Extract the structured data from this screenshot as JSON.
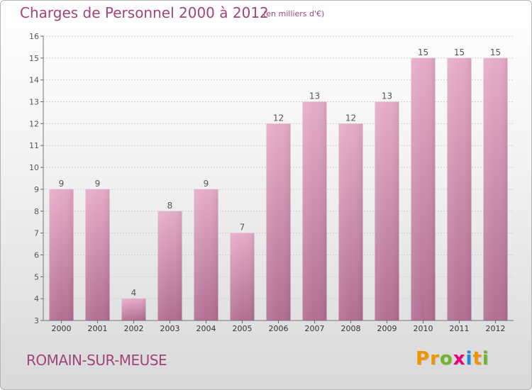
{
  "title": "Charges de Personnel 2000 à 2012",
  "subtitle": "(en milliers d'€)",
  "city": "ROMAIN-SUR-MEUSE",
  "logo": {
    "letters": [
      "P",
      "r",
      "o",
      "x",
      "i",
      "t",
      "i"
    ],
    "colors": [
      "#f29400",
      "#f29400",
      "#6fb52c",
      "#e6007e",
      "#1d8bd6",
      "#f29400",
      "#6fb52c"
    ]
  },
  "colors": {
    "bar": "#d68fb5",
    "text": "#a0457a"
  },
  "chart_data": {
    "type": "bar",
    "categories": [
      "2000",
      "2001",
      "2002",
      "2003",
      "2004",
      "2005",
      "2006",
      "2007",
      "2008",
      "2009",
      "2010",
      "2011",
      "2012"
    ],
    "values": [
      9,
      9,
      4,
      8,
      9,
      7,
      12,
      13,
      12,
      13,
      15,
      15,
      15
    ],
    "ylim": [
      3,
      16
    ],
    "yticks": [
      3,
      4,
      5,
      6,
      7,
      8,
      9,
      10,
      11,
      12,
      13,
      14,
      15,
      16
    ],
    "grid": true
  }
}
